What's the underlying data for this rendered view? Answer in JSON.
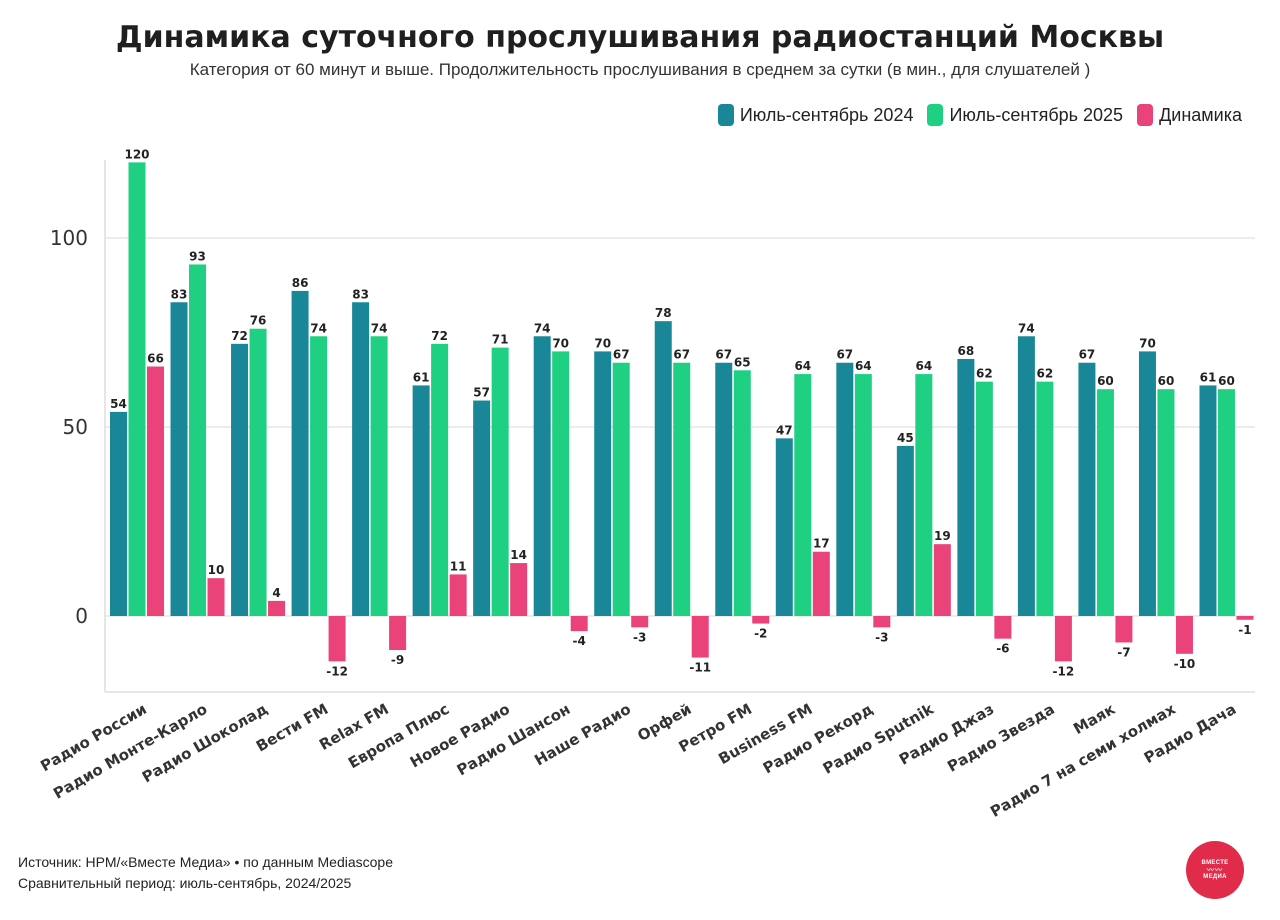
{
  "chart_data": {
    "type": "bar",
    "title": "Динамика суточного прослушивания радиостанций Москвы",
    "subtitle": "Категория от 60 минут и выше. Продолжительность прослушивания в среднем за сутки (в мин., для слушателей )",
    "categories": [
      "Радио России",
      "Радио Монте-Карло",
      "Радио Шоколад",
      "Вести FM",
      "Relax FM",
      "Европа Плюс",
      "Новое Радио",
      "Радио Шансон",
      "Наше Радио",
      "Орфей",
      "Ретро FM",
      "Business FM",
      "Радио Рекорд",
      "Радио Sputnik",
      "Радио Джаз",
      "Радио Звезда",
      "Маяк",
      "Радио 7 на семи холмах",
      "Радио Дача"
    ],
    "series": [
      {
        "name": "Июль-сентябрь 2024",
        "color": "#1a8798",
        "values": [
          54,
          83,
          72,
          86,
          83,
          61,
          57,
          74,
          70,
          78,
          67,
          47,
          67,
          45,
          68,
          74,
          67,
          70,
          61
        ]
      },
      {
        "name": "Июль-сентябрь 2025",
        "color": "#1fcf82",
        "values": [
          120,
          93,
          76,
          74,
          74,
          72,
          71,
          70,
          67,
          67,
          65,
          64,
          64,
          64,
          62,
          62,
          60,
          60,
          60
        ]
      },
      {
        "name": "Динамика",
        "color": "#e9437a",
        "values": [
          66,
          10,
          4,
          -12,
          -9,
          11,
          14,
          -4,
          -3,
          -11,
          -2,
          17,
          -3,
          19,
          -6,
          -12,
          -7,
          -10,
          -1
        ]
      }
    ],
    "yticks": [
      0,
      50,
      100
    ],
    "ylim": [
      -20,
      120
    ],
    "grid": true,
    "legend": "top-right"
  },
  "footer": {
    "source": "Источник: НРМ/«Вместе Медиа» • по данным Mediascope",
    "period": "Сравнительный период: июль-сентябрь, 2024/2025"
  },
  "logo": {
    "line1": "ВМЕСТЕ",
    "line2": "МЕДИА"
  }
}
